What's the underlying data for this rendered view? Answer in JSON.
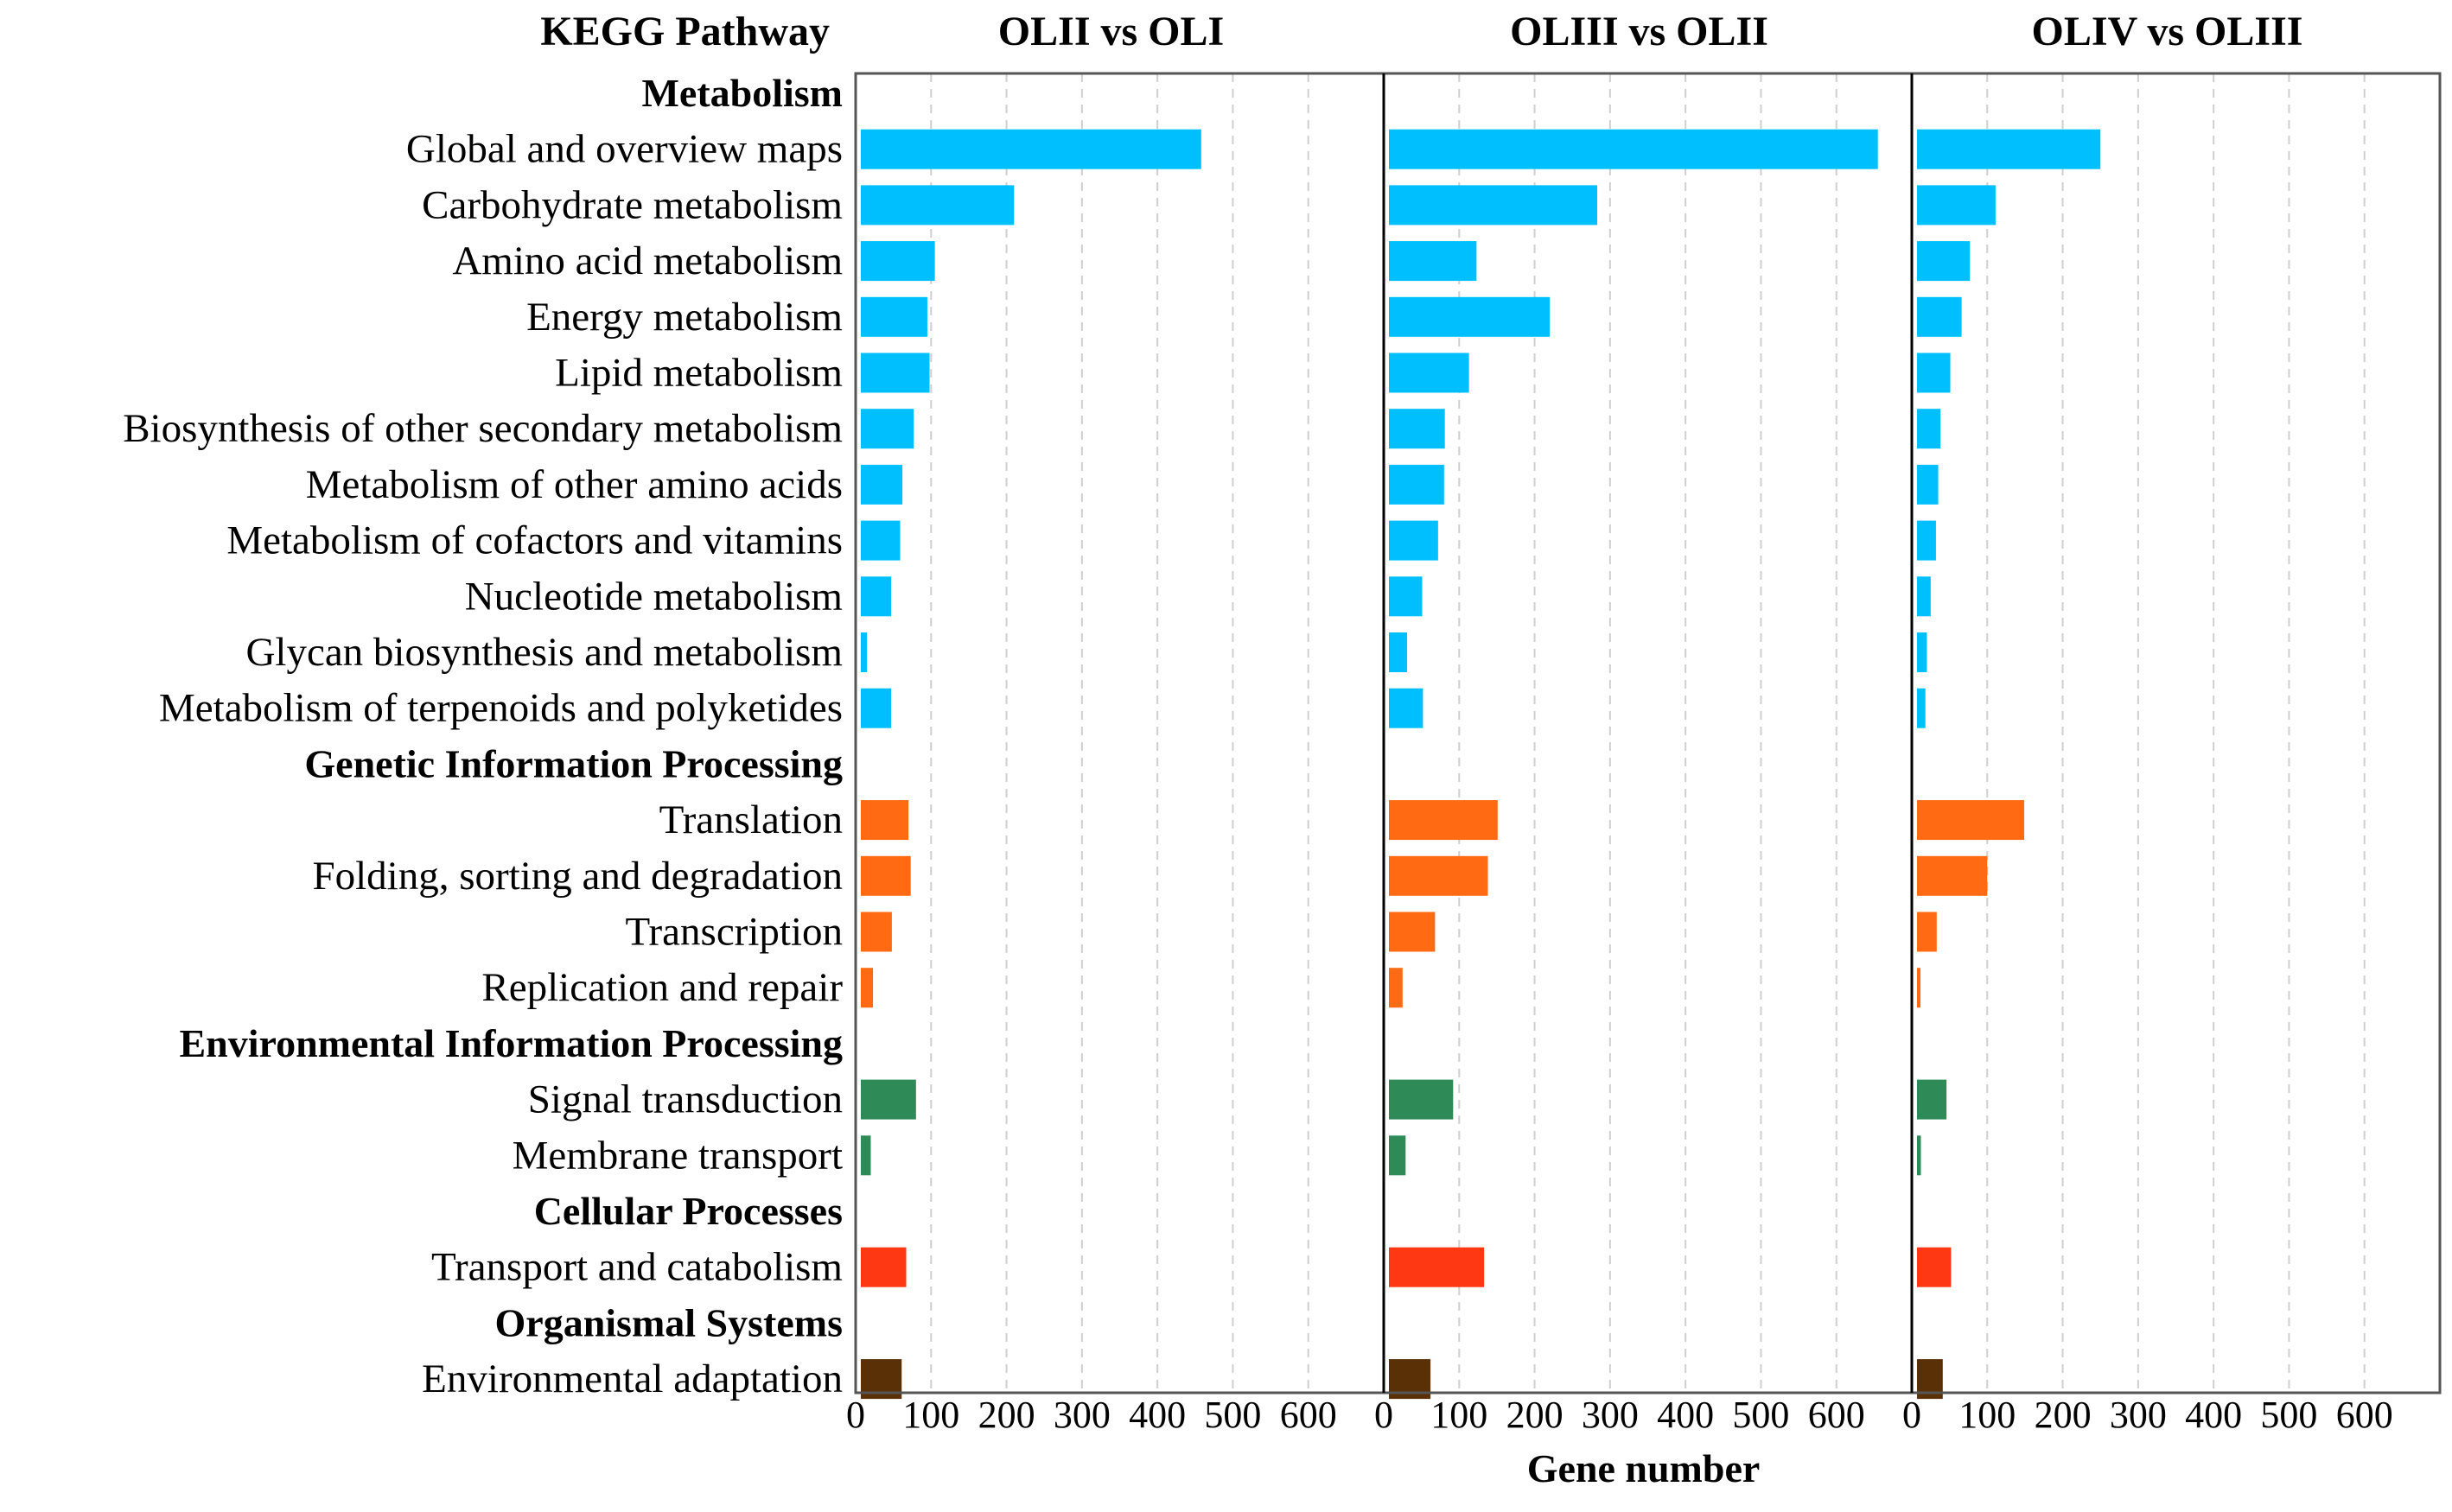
{
  "chart_data": {
    "type": "bar",
    "orientation": "horizontal",
    "header_label": "KEGG Pathway",
    "xlabel": "Gene number",
    "xlim": [
      0,
      700
    ],
    "xticks": [
      0,
      100,
      200,
      300,
      400,
      500,
      600
    ],
    "grid": "vertical dashed",
    "category_colors": {
      "Metabolism": "#00BFFF",
      "Genetic Information Processing": "#FF6A13",
      "Environmental Information Processing": "#2E8B57",
      "Cellular Processes": "#FF3814",
      "Organismal Systems": "#5A3006"
    },
    "rows": [
      {
        "label": "Metabolism",
        "header": true
      },
      {
        "label": "Global and overview maps",
        "category": "Metabolism"
      },
      {
        "label": "Carbohydrate metabolism",
        "category": "Metabolism"
      },
      {
        "label": "Amino acid metabolism",
        "category": "Metabolism"
      },
      {
        "label": "Energy metabolism",
        "category": "Metabolism"
      },
      {
        "label": "Lipid metabolism",
        "category": "Metabolism"
      },
      {
        "label": "Biosynthesis of other secondary metabolism",
        "category": "Metabolism"
      },
      {
        "label": "Metabolism of other amino acids",
        "category": "Metabolism"
      },
      {
        "label": "Metabolism of cofactors and vitamins",
        "category": "Metabolism"
      },
      {
        "label": "Nucleotide metabolism",
        "category": "Metabolism"
      },
      {
        "label": "Glycan biosynthesis and metabolism",
        "category": "Metabolism"
      },
      {
        "label": "Metabolism of terpenoids and polyketides",
        "category": "Metabolism"
      },
      {
        "label": "Genetic Information Processing",
        "header": true
      },
      {
        "label": "Translation",
        "category": "Genetic Information Processing"
      },
      {
        "label": "Folding, sorting and degradation",
        "category": "Genetic Information Processing"
      },
      {
        "label": "Transcription",
        "category": "Genetic Information Processing"
      },
      {
        "label": "Replication and repair",
        "category": "Genetic Information Processing"
      },
      {
        "label": "Environmental Information Processing",
        "header": true
      },
      {
        "label": "Signal transduction",
        "category": "Environmental Information Processing"
      },
      {
        "label": "Membrane transport",
        "category": "Environmental Information Processing"
      },
      {
        "label": "Cellular Processes",
        "header": true
      },
      {
        "label": "Transport and catabolism",
        "category": "Cellular Processes"
      },
      {
        "label": "Organismal Systems",
        "header": true
      },
      {
        "label": "Environmental adaptation",
        "category": "Organismal Systems"
      }
    ],
    "series": [
      {
        "name": "OLII vs OLI",
        "values": [
          null,
          458,
          210,
          105,
          95,
          98,
          77,
          62,
          59,
          47,
          15,
          47,
          null,
          70,
          73,
          48,
          23,
          null,
          80,
          20,
          null,
          67,
          null,
          61
        ]
      },
      {
        "name": "OLIII vs OLII",
        "values": [
          null,
          655,
          283,
          123,
          220,
          113,
          81,
          80,
          72,
          51,
          31,
          52,
          null,
          151,
          138,
          68,
          25,
          null,
          92,
          29,
          null,
          133,
          null,
          62
        ]
      },
      {
        "name": "OLIV vs OLIII",
        "values": [
          null,
          250,
          111,
          77,
          66,
          51,
          38,
          35,
          32,
          25,
          20,
          18,
          null,
          149,
          100,
          33,
          10,
          null,
          46,
          12,
          null,
          52,
          null,
          41
        ]
      }
    ]
  }
}
